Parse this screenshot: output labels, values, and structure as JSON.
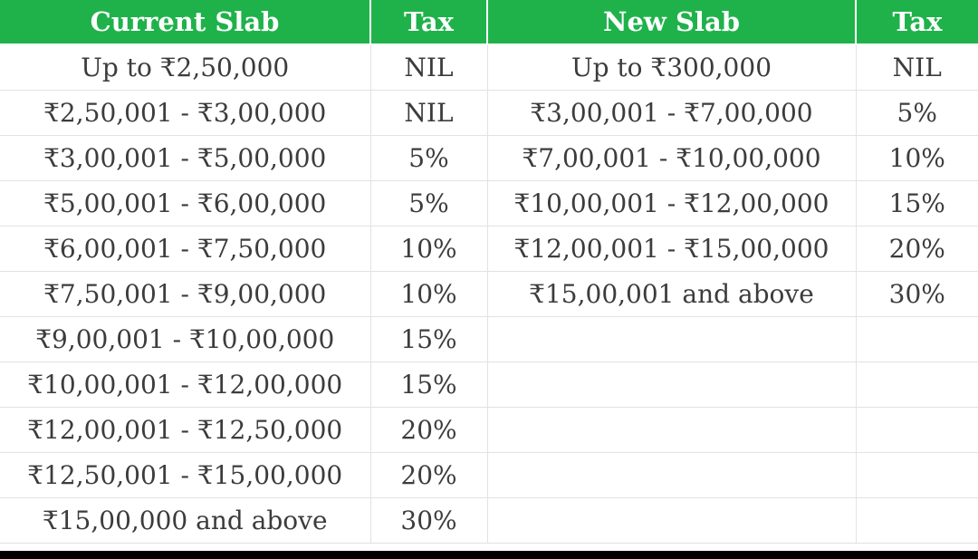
{
  "header": {
    "current_slab": "Current Slab",
    "current_tax": "Tax",
    "new_slab": "New Slab",
    "new_tax": "Tax"
  },
  "rows": [
    {
      "current_slab": "Up to ₹2,50,000",
      "current_tax": "NIL",
      "new_slab": "Up to ₹300,000",
      "new_tax": "NIL"
    },
    {
      "current_slab": "₹2,50,001 - ₹3,00,000",
      "current_tax": "NIL",
      "new_slab": "₹3,00,001 - ₹7,00,000",
      "new_tax": "5%"
    },
    {
      "current_slab": "₹3,00,001 - ₹5,00,000",
      "current_tax": "5%",
      "new_slab": "₹7,00,001 - ₹10,00,000",
      "new_tax": "10%"
    },
    {
      "current_slab": "₹5,00,001 - ₹6,00,000",
      "current_tax": "5%",
      "new_slab": "₹10,00,001 - ₹12,00,000",
      "new_tax": "15%"
    },
    {
      "current_slab": "₹6,00,001 - ₹7,50,000",
      "current_tax": "10%",
      "new_slab": "₹12,00,001 - ₹15,00,000",
      "new_tax": "20%"
    },
    {
      "current_slab": "₹7,50,001 - ₹9,00,000",
      "current_tax": "10%",
      "new_slab": "₹15,00,001 and above",
      "new_tax": "30%"
    },
    {
      "current_slab": "₹9,00,001 - ₹10,00,000",
      "current_tax": "15%",
      "new_slab": "",
      "new_tax": ""
    },
    {
      "current_slab": "₹10,00,001 - ₹12,00,000",
      "current_tax": "15%",
      "new_slab": "",
      "new_tax": ""
    },
    {
      "current_slab": "₹12,00,001 - ₹12,50,000",
      "current_tax": "20%",
      "new_slab": "",
      "new_tax": ""
    },
    {
      "current_slab": "₹12,50,001 - ₹15,00,000",
      "current_tax": "20%",
      "new_slab": "",
      "new_tax": ""
    },
    {
      "current_slab": "₹15,00,000 and above",
      "current_tax": "30%",
      "new_slab": "",
      "new_tax": ""
    }
  ],
  "colors": {
    "header_background": "#1fb24b",
    "header_text": "#ffffff",
    "cell_text": "#3c3c3c",
    "grid_line": "#e2e2e2"
  }
}
